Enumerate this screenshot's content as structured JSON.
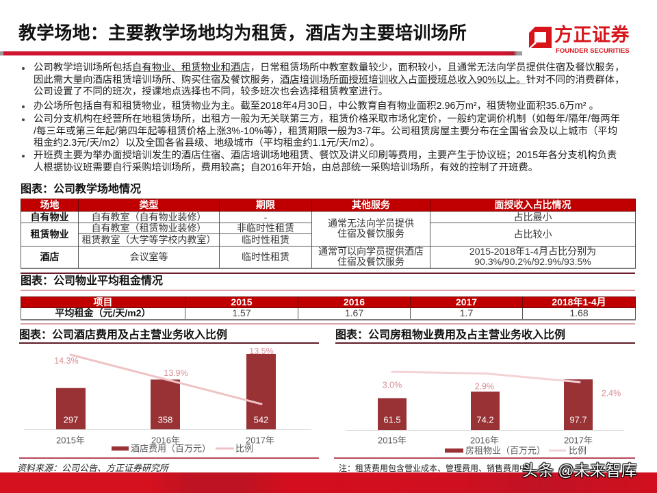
{
  "header": {
    "title": "教学场地：主要教学场地均为租赁，酒店为主要培训场所",
    "logo": {
      "cn": "方正证券",
      "en": "FOUNDER SECURITIES",
      "icon": "founder-logo-icon",
      "color": "#d7141a"
    }
  },
  "bullets": [
    {
      "lines": [
        {
          "a": "公司教学培训场所包括",
          "u": "自有物业、租赁物业和酒店",
          "b": "，日常租赁场所中教室数量较少，面积较小，且通常无法向学员提供住宿及餐饮服务，"
        },
        {
          "a": "因此需大量向酒店租赁培训场所、购买住宿及餐饮服务，",
          "u": "酒店培训场所面授班培训收入占面授班总收入90%以上。",
          "b": "针对不同的消费群体，"
        },
        {
          "a": "公司设置了不同的班次，授课地点选择也不同，较多班次也会选择租赁教室进行。"
        }
      ]
    },
    {
      "lines": [
        {
          "a": "办公场所包括自有和租赁物业，租赁物业为主。截至2018年4月30日，中公教育自有物业面积2.96万m²，租赁物业面积35.6万m² 。"
        }
      ]
    },
    {
      "lines": [
        {
          "a": "公司分支机构在经营所在地租赁场所，出租方一般为无关联第三方，租赁价格采取市场化定价，一般约定调价机制（如每年/隔年/每两年"
        },
        {
          "a": "/每三年或第三年起/第四年起等租赁价格上涨3%-10%等），租赁期限一般为3-7年。公司租赁房屋主要分布在全国省会及以上城市（平均"
        },
        {
          "a": "租金约2.3元/天/m2）以及全国各省县级、地级城市（平均租金约1.1元/天/m2）。"
        }
      ]
    },
    {
      "lines": [
        {
          "a": "开班费主要为举办面授培训发生的酒店住宿、酒店培训场地租赁、餐饮及讲义印刷等费用，主要产生于协议班；2015年各分支机构负责"
        },
        {
          "a": "人根据协议班需要自行采购培训场所，费用较高；自2016年开始，由总部统一采购培训场所，有效的控制了开班费。"
        }
      ]
    }
  ],
  "table_sites": {
    "title": "图表：公司教学场地情况",
    "headers": [
      "场地",
      "类型",
      "期限",
      "其他服务",
      "面授收入占比情况"
    ],
    "header_color": "#c00000",
    "rows": [
      {
        "site": "自有物业",
        "type": "自有教室（自有物业装修）",
        "term": "-",
        "service": "通常无法向学员提供\n住宿及餐饮服务",
        "share": "占比最小"
      },
      {
        "site": "租赁物业",
        "type": "自有教室（租赁物业装修）",
        "term": "非临时性租赁",
        "share": "占比较小"
      },
      {
        "type": "租赁教室（大学等学校内教室）",
        "term": "临时性租赁"
      },
      {
        "site": "酒店",
        "type": "会议室等",
        "term": "临时性租赁",
        "service": "通常可以向学员提供酒店\n住宿及餐饮服务",
        "share": "2015-2018年1-4月占比分别为\n90.3%/90.2%/92.9%/93.5%"
      }
    ]
  },
  "table_rent": {
    "title": "图表：公司物业平均租金情况",
    "headers": [
      "项目",
      "2015",
      "2016",
      "2017",
      "2018年1-4月"
    ],
    "row": [
      "平均租金（元/天/m2）",
      "1.57",
      "1.67",
      "1.7",
      "1.68"
    ]
  },
  "chart_data": [
    {
      "type": "bar",
      "title": "图表：公司酒店费用及占主营业务收入比例",
      "categories": [
        "2015年",
        "2016年",
        "2017年"
      ],
      "series": [
        {
          "name": "酒店费用（百万元）",
          "kind": "bar",
          "values": [
            297,
            358,
            542
          ],
          "labels": [
            "297",
            "358",
            "542"
          ],
          "color": "#983235"
        },
        {
          "name": "比例",
          "kind": "line",
          "axis": "secondary",
          "values": [
            14.3,
            13.9,
            13.5
          ],
          "labels": [
            "14.3%",
            "13.9%",
            "13.5%"
          ],
          "color": "#efc3c5"
        }
      ],
      "xlabel": "",
      "ylabel": "",
      "grid": false,
      "legend_position": "bottom"
    },
    {
      "type": "bar",
      "title": "图表：公司房租物业费用及占主营业务收入比例",
      "categories": [
        "2015年",
        "2016年",
        "2017年"
      ],
      "series": [
        {
          "name": "房租物业（百万元）",
          "kind": "bar",
          "values": [
            61.5,
            74.2,
            97.7
          ],
          "labels": [
            "61.5",
            "74.2",
            "97.7"
          ],
          "color": "#983235"
        },
        {
          "name": "比例",
          "kind": "line",
          "axis": "secondary",
          "values": [
            3.0,
            2.9,
            2.4
          ],
          "labels": [
            "3.0%",
            "2.9%",
            "2.4%"
          ],
          "color": "#f2d2d5"
        }
      ],
      "xlabel": "",
      "ylabel": "",
      "grid": false,
      "legend_position": "bottom"
    }
  ],
  "footer": {
    "source": "资料来源：公司公告、方正证券研究所",
    "note": "注：租赁费用包含营业成本、管理费用、销售费用中",
    "watermark": "头条 @未来智库",
    "band_color": "#d5101f"
  }
}
